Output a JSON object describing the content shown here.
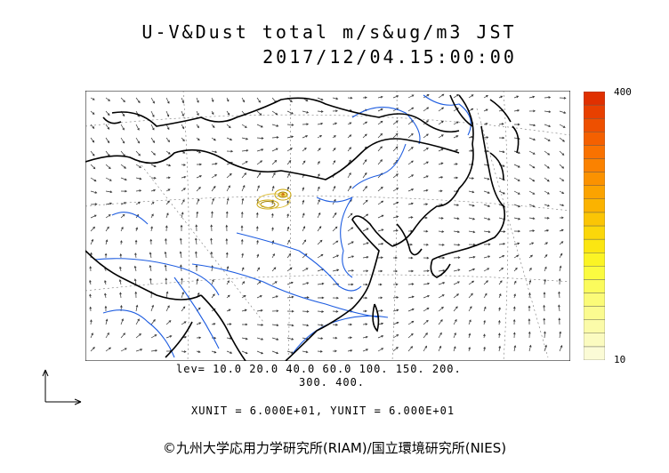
{
  "title": {
    "line1": "U-V&Dust total m/s&ug/m3 JST",
    "line2": "2017/12/04.15:00:00"
  },
  "colorbar": {
    "max_label": "400",
    "min_label": "10",
    "colors": [
      "#fbfbd6",
      "#fbfbc0",
      "#fbfba9",
      "#fbfb90",
      "#fbfb78",
      "#fbfb5c",
      "#fbfb40",
      "#fbf425",
      "#fbe612",
      "#fbd70a",
      "#fbc505",
      "#fbb300",
      "#fba300",
      "#fb9200",
      "#fb8200",
      "#f97200",
      "#f46000",
      "#ee5000",
      "#e84000",
      "#e03000"
    ]
  },
  "levels": {
    "line1": "lev= 10.0 20.0 40.0 60.0 100. 150. 200.",
    "line2": "300. 400."
  },
  "units": "XUNIT = 6.000E+01, YUNIT = 6.000E+01",
  "credit": "©九州大学応用力学研究所(RIAM)/国立環境研究所(NIES)",
  "colors": {
    "coast": "#000000",
    "rivers": "#1d5ce0",
    "vectors": "#333333",
    "dust_contour": "#c9a300"
  },
  "icons": {
    "axes": "unit-vector-axes-icon"
  }
}
